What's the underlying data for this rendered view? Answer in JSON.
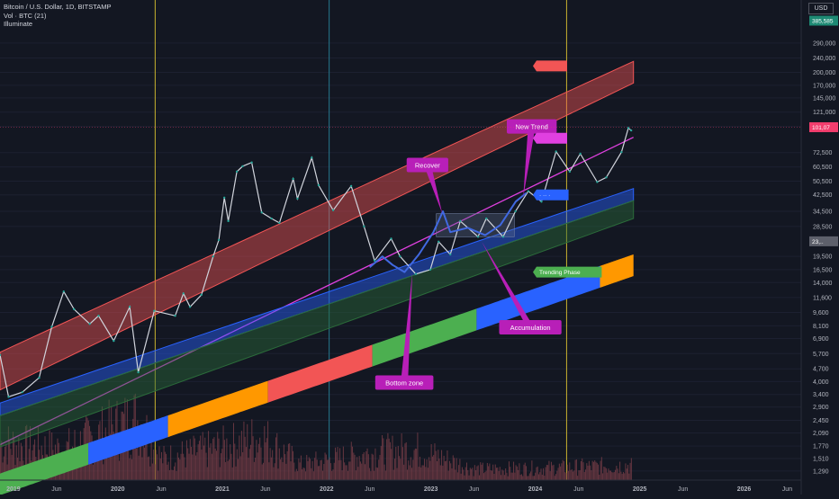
{
  "header": {
    "symbol_line": "Bitcoin / U.S. Dollar, 1D, BITSTAMP",
    "vol_line": "Vol · BTC (21)",
    "indicator_line": "Illuminate",
    "currency_button": "USD"
  },
  "chart_data": {
    "type": "line",
    "title": "Bitcoin / U.S. Dollar, 1D, BITSTAMP",
    "yscale": "log",
    "ylim": [
      1150,
      500000
    ],
    "xlim": [
      "2018-11-15",
      "2026-07-20"
    ],
    "y_ticks": [
      1290,
      1510,
      1770,
      2090,
      2450,
      2900,
      3400,
      4000,
      4700,
      5700,
      6900,
      8100,
      9600,
      11600,
      14000,
      16500,
      19500,
      28500,
      34500,
      42500,
      50500,
      60500,
      72500,
      101000,
      121000,
      145000,
      170000,
      200000,
      240000,
      290000
    ],
    "y_tick_labels": [
      "1,290",
      "1,510",
      "1,770",
      "2,090",
      "2,450",
      "2,900",
      "3,400",
      "4,000",
      "4,700",
      "5,700",
      "6,900",
      "8,100",
      "9,600",
      "11,600",
      "14,000",
      "16,500",
      "19,500",
      "28,500",
      "34,500",
      "42,500",
      "50,500",
      "60,500",
      "72,500",
      "101,000",
      "121,000",
      "145,000",
      "170,000",
      "200,000",
      "240,000",
      "290,000"
    ],
    "x_ticks": [
      {
        "date": "2019-01-01",
        "label": "2019"
      },
      {
        "date": "2019-06-01",
        "label": "Jun"
      },
      {
        "date": "2020-01-01",
        "label": "2020"
      },
      {
        "date": "2020-06-01",
        "label": "Jun"
      },
      {
        "date": "2021-01-01",
        "label": "2021"
      },
      {
        "date": "2021-06-01",
        "label": "Jun"
      },
      {
        "date": "2022-01-01",
        "label": "2022"
      },
      {
        "date": "2022-06-01",
        "label": "Jun"
      },
      {
        "date": "2023-01-01",
        "label": "2023"
      },
      {
        "date": "2023-06-01",
        "label": "Jun"
      },
      {
        "date": "2024-01-01",
        "label": "2024"
      },
      {
        "date": "2024-06-01",
        "label": "Jun"
      },
      {
        "date": "2025-01-01",
        "label": "2025"
      },
      {
        "date": "2025-06-01",
        "label": "Jun"
      },
      {
        "date": "2026-01-01",
        "label": "2026"
      },
      {
        "date": "2026-06-01",
        "label": "Jun"
      }
    ],
    "vertical_lines": [
      {
        "date": "2020-05-11",
        "color": "#c9b32f"
      },
      {
        "date": "2022-01-10",
        "color": "#26788f"
      },
      {
        "date": "2024-04-20",
        "color": "#c9b32f"
      }
    ],
    "price_labels": [
      {
        "price": 385000,
        "text": "385,585",
        "color": "#1e8a74"
      },
      {
        "price": 100000,
        "text": "101,07",
        "color": "#f23d6d"
      },
      {
        "price": 23600,
        "text": "23,..",
        "color": "#5d606b"
      }
    ],
    "price_series": {
      "name": "BTC/USD",
      "color": "#d1d4dc",
      "points": [
        [
          "2018-11-15",
          5600
        ],
        [
          "2018-12-15",
          3300
        ],
        [
          "2019-02-01",
          3500
        ],
        [
          "2019-04-01",
          4200
        ],
        [
          "2019-05-15",
          8000
        ],
        [
          "2019-06-26",
          12500
        ],
        [
          "2019-08-01",
          10000
        ],
        [
          "2019-09-25",
          8300
        ],
        [
          "2019-10-26",
          9200
        ],
        [
          "2019-12-18",
          6700
        ],
        [
          "2020-02-12",
          10300
        ],
        [
          "2020-03-13",
          4500
        ],
        [
          "2020-05-08",
          9800
        ],
        [
          "2020-07-20",
          9200
        ],
        [
          "2020-08-18",
          12200
        ],
        [
          "2020-09-10",
          10300
        ],
        [
          "2020-10-20",
          12000
        ],
        [
          "2020-11-30",
          19500
        ],
        [
          "2020-12-20",
          24000
        ],
        [
          "2021-01-08",
          41000
        ],
        [
          "2021-01-22",
          30500
        ],
        [
          "2021-02-21",
          57000
        ],
        [
          "2021-03-13",
          61000
        ],
        [
          "2021-04-14",
          64000
        ],
        [
          "2021-05-19",
          34000
        ],
        [
          "2021-06-22",
          31500
        ],
        [
          "2021-07-20",
          29800
        ],
        [
          "2021-09-06",
          52000
        ],
        [
          "2021-09-21",
          40500
        ],
        [
          "2021-11-10",
          68000
        ],
        [
          "2021-12-04",
          48000
        ],
        [
          "2022-01-24",
          35000
        ],
        [
          "2022-03-28",
          47500
        ],
        [
          "2022-05-12",
          28500
        ],
        [
          "2022-06-18",
          18500
        ],
        [
          "2022-08-15",
          24400
        ],
        [
          "2022-09-15",
          19500
        ],
        [
          "2022-11-09",
          15600
        ],
        [
          "2022-12-30",
          16500
        ],
        [
          "2023-01-28",
          23500
        ],
        [
          "2023-03-10",
          20000
        ],
        [
          "2023-04-14",
          30500
        ],
        [
          "2023-06-15",
          25000
        ],
        [
          "2023-07-14",
          31500
        ],
        [
          "2023-09-11",
          25000
        ],
        [
          "2023-10-24",
          34500
        ],
        [
          "2023-12-08",
          44500
        ],
        [
          "2024-01-23",
          39000
        ],
        [
          "2024-03-14",
          73500
        ],
        [
          "2024-05-01",
          57000
        ],
        [
          "2024-06-07",
          71500
        ],
        [
          "2024-08-05",
          50000
        ],
        [
          "2024-09-06",
          53000
        ],
        [
          "2024-10-29",
          73000
        ],
        [
          "2024-11-22",
          99000
        ],
        [
          "2024-12-02",
          96000
        ]
      ]
    },
    "volume_series": {
      "name": "Vol · BTC (21)",
      "color": "#7a3f49",
      "points": [
        [
          "2018-11-15",
          0.6
        ],
        [
          "2019-06-26",
          0.5
        ],
        [
          "2020-03-13",
          1.0
        ],
        [
          "2020-06-01",
          0.35
        ],
        [
          "2021-01-10",
          0.55
        ],
        [
          "2021-05-19",
          0.7
        ],
        [
          "2021-10-01",
          0.25
        ],
        [
          "2022-06-18",
          0.45
        ],
        [
          "2022-11-09",
          0.5
        ],
        [
          "2023-06-01",
          0.18
        ],
        [
          "2024-03-14",
          0.2
        ],
        [
          "2024-12-01",
          0.25
        ]
      ]
    },
    "bands": [
      {
        "name": "top band",
        "color": "#f25555",
        "start": "2018-11-15",
        "end": "2024-12-10",
        "upper_start": 5800,
        "upper_end": 230000,
        "lower_start": 3600,
        "lower_end": 175000
      },
      {
        "name": "mid line",
        "color": "#e040e0",
        "start": "2018-11-15",
        "end": "2024-12-10",
        "upper_start": 1800,
        "upper_end": 88000,
        "lower_start": 1800,
        "lower_end": 88000
      },
      {
        "name": "blue band",
        "color": "#2962ff",
        "start": "2018-11-15",
        "end": "2024-12-10",
        "upper_start": 3050,
        "upper_end": 46000,
        "lower_start": 2600,
        "lower_end": 39500
      },
      {
        "name": "green band",
        "color": "#2b6b3a",
        "start": "2018-11-15",
        "end": "2024-12-10",
        "upper_start": 2600,
        "upper_end": 39500,
        "lower_start": 1750,
        "lower_end": 31500
      }
    ],
    "cycle_bar": {
      "start": "2018-11-15",
      "end": "2024-12-10",
      "upper_start": 1250,
      "upper_end": 20000,
      "lower_start": 950,
      "lower_end": 15200,
      "segments": [
        {
          "from": "2018-11-15",
          "to": "2019-09-20",
          "color": "#4caf50"
        },
        {
          "from": "2019-09-20",
          "to": "2020-06-25",
          "color": "#2962ff"
        },
        {
          "from": "2020-06-25",
          "to": "2021-06-10",
          "color": "#ff9800"
        },
        {
          "from": "2021-06-10",
          "to": "2022-06-10",
          "color": "#f25555"
        },
        {
          "from": "2022-06-10",
          "to": "2023-06-10",
          "color": "#4caf50"
        },
        {
          "from": "2023-06-10",
          "to": "2024-08-15",
          "color": "#2962ff"
        },
        {
          "from": "2024-08-15",
          "to": "2024-12-10",
          "color": "#ff9800"
        }
      ]
    },
    "band_end_labels": [
      {
        "price": 217000,
        "text": "",
        "color": "#f25555"
      },
      {
        "price": 87000,
        "text": "",
        "color": "#e040e0"
      },
      {
        "price": 42500,
        "text": "· ·· ·",
        "color": "#2962ff"
      },
      {
        "price": 16000,
        "text": "Trending Phase",
        "color": "#4caf50"
      }
    ],
    "annotations": [
      {
        "text": "Recover",
        "label_date": "2022-12-20",
        "label_price": 62000,
        "point_date": "2023-02-10",
        "point_price": 33500
      },
      {
        "text": "New Trend",
        "label_date": "2023-12-20",
        "label_price": 101000,
        "point_date": "2023-11-20",
        "point_price": 41000
      },
      {
        "text": "Accumulation",
        "label_date": "2023-12-15",
        "label_price": 7950,
        "point_date": "2023-06-28",
        "point_price": 23500
      },
      {
        "text": "Bottom zone",
        "label_date": "2022-09-30",
        "label_price": 3950,
        "point_date": "2022-10-28",
        "point_price": 15800
      }
    ],
    "accumulation_box": {
      "start": "2023-01-20",
      "end": "2023-10-20",
      "low": 25000,
      "high": 33500
    },
    "hand_curve": {
      "color": "#4169e1",
      "points": [
        [
          "2022-06-01",
          17000
        ],
        [
          "2022-07-15",
          19500
        ],
        [
          "2022-08-20",
          17500
        ],
        [
          "2022-10-01",
          16000
        ],
        [
          "2022-11-20",
          20000
        ],
        [
          "2023-01-10",
          26500
        ],
        [
          "2023-02-12",
          34500
        ],
        [
          "2023-03-10",
          26500
        ],
        [
          "2023-05-10",
          28000
        ],
        [
          "2023-07-10",
          25500
        ],
        [
          "2023-09-01",
          29000
        ],
        [
          "2023-10-25",
          39000
        ],
        [
          "2023-12-01",
          43500
        ]
      ]
    }
  }
}
